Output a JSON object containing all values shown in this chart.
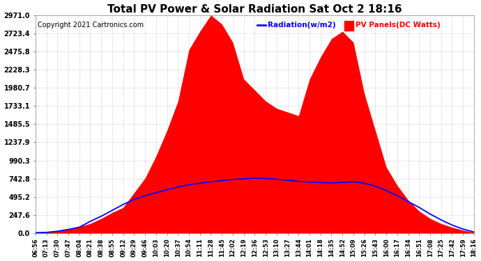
{
  "title": "Total PV Power & Solar Radiation Sat Oct 2 18:16",
  "copyright": "Copyright 2021 Cartronics.com",
  "legend_radiation": "Radiation(w/m2)",
  "legend_pv": "PV Panels(DC Watts)",
  "y_max": 2971.0,
  "y_ticks": [
    0.0,
    247.6,
    495.2,
    742.8,
    990.3,
    1237.9,
    1485.5,
    1733.1,
    1980.7,
    2228.3,
    2475.8,
    2723.4,
    2971.0
  ],
  "x_labels": [
    "06:56",
    "07:13",
    "07:30",
    "07:47",
    "08:04",
    "08:21",
    "08:38",
    "08:55",
    "09:12",
    "09:29",
    "09:46",
    "10:03",
    "10:20",
    "10:37",
    "10:54",
    "11:11",
    "11:28",
    "11:45",
    "12:02",
    "12:19",
    "12:36",
    "12:53",
    "13:10",
    "13:27",
    "13:44",
    "14:01",
    "14:18",
    "14:35",
    "14:52",
    "15:09",
    "15:26",
    "15:43",
    "16:00",
    "16:17",
    "16:34",
    "16:51",
    "17:08",
    "17:25",
    "17:42",
    "17:59",
    "18:16"
  ],
  "pv_color": "#ff0000",
  "radiation_color": "#0000ff",
  "bg_color": "#ffffff",
  "grid_color": "#cccccc",
  "title_color": "#000000",
  "copyright_color": "#000000",
  "legend_radiation_color": "#0000ff",
  "legend_pv_color": "#ff0000",
  "pv_data": [
    10,
    15,
    30,
    60,
    90,
    130,
    200,
    280,
    350,
    550,
    750,
    1050,
    1400,
    1800,
    2500,
    2750,
    2971,
    2850,
    2600,
    2100,
    1950,
    1800,
    1700,
    1650,
    1600,
    2100,
    2400,
    2650,
    2750,
    2600,
    1900,
    1400,
    900,
    650,
    450,
    300,
    200,
    130,
    80,
    40,
    10
  ],
  "rad_data": [
    5,
    10,
    25,
    50,
    80,
    160,
    230,
    310,
    390,
    460,
    510,
    550,
    590,
    630,
    660,
    680,
    700,
    715,
    730,
    740,
    750,
    745,
    735,
    720,
    705,
    695,
    690,
    685,
    690,
    700,
    680,
    640,
    580,
    510,
    430,
    350,
    260,
    180,
    110,
    55,
    15
  ]
}
